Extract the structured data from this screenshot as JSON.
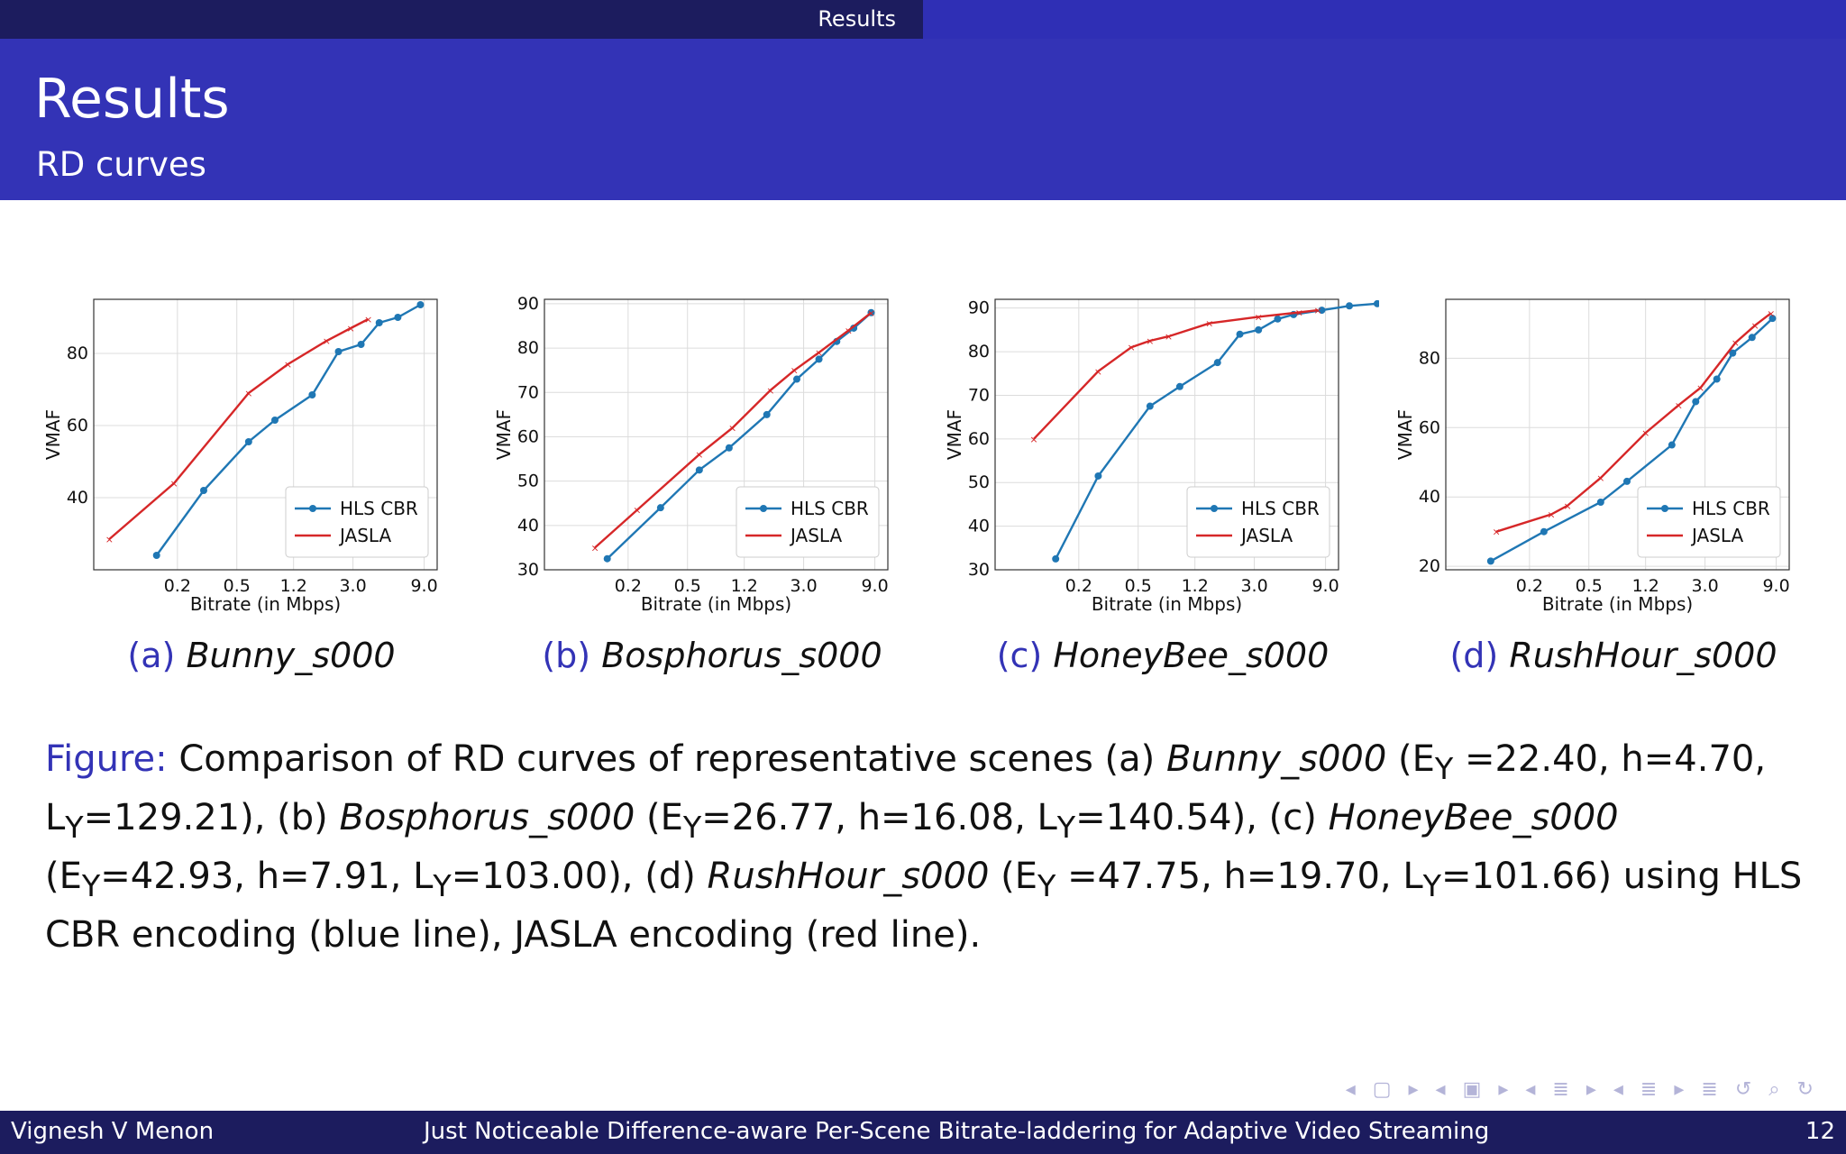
{
  "header": {
    "section": "Results",
    "title": "Results",
    "subtitle": "RD curves"
  },
  "subcaptions": [
    {
      "label": "(a)",
      "name": "Bunny_s000"
    },
    {
      "label": "(b)",
      "name": "Bosphorus_s000"
    },
    {
      "label": "(c)",
      "name": "HoneyBee_s000"
    },
    {
      "label": "(d)",
      "name": "RushHour_s000"
    }
  ],
  "figure_caption": {
    "prefix": "Figure:",
    "p1": "Comparison of RD curves of representative scenes (a) ",
    "n1": "Bunny_s000",
    "s1": " (E",
    "sub": "Y",
    "a_stats": " =22.40, h=4.70, L",
    "a_l": "=129.21), (b) ",
    "n2": "Bosphorus_s000",
    "b_stats": "=26.77, h=16.08, L",
    "b_l": "=140.54), (c) ",
    "n3": "HoneyBee_s000",
    "c_stats": "=42.93, h=7.91, L",
    "c_l": "=103.00), (d) ",
    "n4": "RushHour_s000",
    "d_stats": " =47.75, h=19.70, L",
    "d_l": "=101.66) using HLS CBR encoding (blue line), JASLA encoding (red line)."
  },
  "footer": {
    "author": "Vignesh V Menon",
    "title": "Just Noticeable Difference-aware Per-Scene Bitrate-laddering for Adaptive Video Streaming",
    "page": "12"
  },
  "colors": {
    "blue": "#1f77b4",
    "red": "#d62728"
  },
  "chart_data": [
    {
      "type": "line",
      "name": "Bunny_s000",
      "xlabel": "Bitrate (in Mbps)",
      "ylabel": "VMAF",
      "xticks": [
        "0.2",
        "0.5",
        "1.2",
        "3.0",
        "9.0"
      ],
      "yticks": [
        40,
        60,
        80
      ],
      "ylim": [
        20,
        95
      ],
      "series": [
        {
          "name": "HLS CBR",
          "x": [
            0.145,
            0.3,
            0.6,
            0.9,
            1.6,
            2.4,
            3.4,
            4.5,
            6,
            8.5
          ],
          "y": [
            24,
            42,
            55.5,
            61.5,
            68.5,
            80.5,
            82.5,
            88.5,
            90,
            93.5
          ]
        },
        {
          "name": "JASLA",
          "x": [
            0.07,
            0.19,
            0.6,
            1.1,
            2.0,
            2.9,
            3.8
          ],
          "y": [
            28.5,
            44,
            69,
            77,
            83.5,
            87,
            89.5
          ]
        }
      ]
    },
    {
      "type": "line",
      "name": "Bosphorus_s000",
      "xlabel": "Bitrate (in Mbps)",
      "ylabel": "VMAF",
      "xticks": [
        "0.2",
        "0.5",
        "1.2",
        "3.0",
        "9.0"
      ],
      "yticks": [
        30,
        40,
        50,
        60,
        70,
        80,
        90
      ],
      "ylim": [
        30,
        91
      ],
      "series": [
        {
          "name": "HLS CBR",
          "x": [
            0.145,
            0.33,
            0.6,
            0.95,
            1.7,
            2.7,
            3.8,
            5.0,
            6.5,
            8.5
          ],
          "y": [
            32.5,
            44,
            52.5,
            57.5,
            65,
            73,
            77.5,
            81.5,
            84.5,
            88
          ]
        },
        {
          "name": "JASLA",
          "x": [
            0.12,
            0.23,
            0.6,
            1.0,
            1.8,
            2.6,
            3.8,
            6.0,
            8.5
          ],
          "y": [
            35,
            43.5,
            56,
            62,
            70.5,
            75,
            79,
            84,
            88
          ]
        }
      ]
    },
    {
      "type": "line",
      "name": "HoneyBee_s000",
      "xlabel": "Bitrate (in Mbps)",
      "ylabel": "VMAF",
      "xticks": [
        "0.2",
        "0.5",
        "1.2",
        "3.0",
        "9.0"
      ],
      "yticks": [
        30,
        40,
        50,
        60,
        70,
        80,
        90
      ],
      "ylim": [
        30,
        92
      ],
      "series": [
        {
          "name": "HLS CBR",
          "x": [
            0.14,
            0.27,
            0.6,
            0.95,
            1.7,
            2.4,
            3.2,
            4.3,
            5.5,
            8.5,
            13,
            20
          ],
          "y": [
            32.5,
            51.5,
            67.5,
            72,
            77.5,
            84,
            85,
            87.5,
            88.5,
            89.5,
            90.5,
            91
          ]
        },
        {
          "name": "JASLA",
          "x": [
            0.1,
            0.27,
            0.45,
            0.6,
            0.8,
            1.5,
            3.2,
            6,
            8
          ],
          "y": [
            60,
            75.5,
            81,
            82.5,
            83.5,
            86.5,
            88,
            89,
            89.5
          ]
        }
      ]
    },
    {
      "type": "line",
      "name": "RushHour_s000",
      "xlabel": "Bitrate (in Mbps)",
      "ylabel": "VMAF",
      "xticks": [
        "0.2",
        "0.5",
        "1.2",
        "3.0",
        "9.0"
      ],
      "yticks": [
        20,
        40,
        60,
        80
      ],
      "ylim": [
        19,
        97
      ],
      "series": [
        {
          "name": "HLS CBR",
          "x": [
            0.11,
            0.25,
            0.6,
            0.9,
            1.8,
            2.6,
            3.6,
            4.6,
            6.2,
            8.5
          ],
          "y": [
            21.5,
            30,
            38.5,
            44.5,
            55,
            67.5,
            74,
            81.5,
            86,
            91.5
          ]
        },
        {
          "name": "JASLA",
          "x": [
            0.12,
            0.28,
            0.36,
            0.6,
            1.2,
            2.0,
            2.8,
            4.8,
            6.5,
            8.3
          ],
          "y": [
            30,
            35,
            37.5,
            45.5,
            58.5,
            66.5,
            71.5,
            84.5,
            89.5,
            93
          ]
        }
      ]
    }
  ]
}
